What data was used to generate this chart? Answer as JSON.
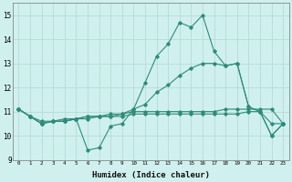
{
  "xlabel": "Humidex (Indice chaleur)",
  "ylabel": "",
  "xlim": [
    -0.5,
    23.5
  ],
  "ylim": [
    9,
    15.5
  ],
  "yticks": [
    9,
    10,
    11,
    12,
    13,
    14,
    15
  ],
  "xticks": [
    0,
    1,
    2,
    3,
    4,
    5,
    6,
    7,
    8,
    9,
    10,
    11,
    12,
    13,
    14,
    15,
    16,
    17,
    18,
    19,
    20,
    21,
    22,
    23
  ],
  "bg_color": "#cff0ee",
  "grid_color": "#b0d8d0",
  "line_color": "#2e8b7a",
  "series": [
    [
      11.1,
      10.8,
      10.5,
      10.6,
      10.6,
      10.7,
      9.4,
      9.5,
      10.4,
      10.5,
      11.1,
      12.2,
      13.3,
      13.8,
      14.7,
      14.5,
      15.0,
      13.5,
      12.9,
      13.0,
      11.2,
      11.0,
      10.0,
      10.5
    ],
    [
      11.1,
      10.8,
      10.5,
      10.6,
      10.6,
      10.7,
      10.8,
      10.8,
      10.8,
      10.9,
      11.0,
      11.0,
      11.0,
      11.0,
      11.0,
      11.0,
      11.0,
      11.0,
      11.1,
      11.1,
      11.1,
      11.1,
      11.1,
      10.5
    ],
    [
      11.1,
      10.8,
      10.6,
      10.6,
      10.7,
      10.7,
      10.7,
      10.8,
      10.9,
      10.9,
      11.1,
      11.3,
      11.8,
      12.1,
      12.5,
      12.8,
      13.0,
      13.0,
      12.9,
      13.0,
      11.2,
      11.0,
      10.0,
      10.5
    ],
    [
      11.1,
      10.8,
      10.5,
      10.6,
      10.6,
      10.7,
      10.8,
      10.8,
      10.8,
      10.8,
      10.9,
      10.9,
      10.9,
      10.9,
      10.9,
      10.9,
      10.9,
      10.9,
      10.9,
      10.9,
      11.0,
      11.0,
      10.5,
      10.5
    ]
  ],
  "figsize": [
    3.2,
    2.0
  ],
  "dpi": 100
}
